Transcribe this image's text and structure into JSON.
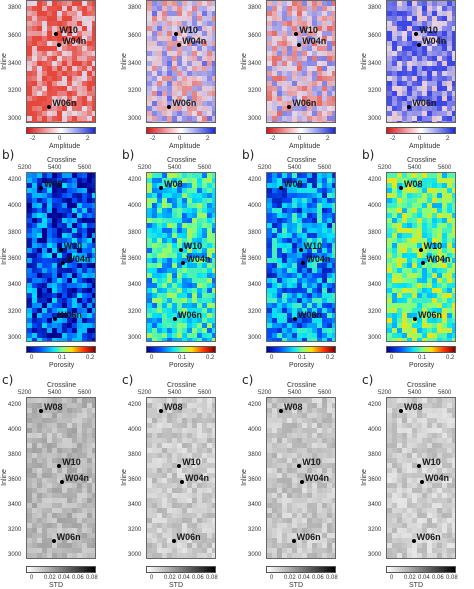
{
  "panels": {
    "row_a": {
      "inline_label": "Inline",
      "inline_ticks": [
        "3800",
        "3600",
        "3400",
        "3200",
        "3000"
      ],
      "colorbar_ticks": [
        "-2",
        "0",
        "2"
      ],
      "colorbar_title": "Amplitude",
      "wells": [
        "W10",
        "W04n",
        "W06n"
      ]
    },
    "row_b": {
      "panel_label": "b)",
      "crossline_title": "Crossline",
      "crossline_ticks": [
        "5200",
        "5400",
        "5600"
      ],
      "inline_label": "Inline",
      "inline_ticks": [
        "4200",
        "4000",
        "3800",
        "3600",
        "3400",
        "3200",
        "3000"
      ],
      "colorbar_ticks": [
        "0",
        "0.1",
        "0.2"
      ],
      "colorbar_title": "Porosity",
      "wells": [
        "W08",
        "W10",
        "W04n",
        "W06n"
      ]
    },
    "row_c": {
      "panel_label": "c)",
      "crossline_title": "Crossline",
      "crossline_ticks": [
        "5200",
        "5400",
        "5600"
      ],
      "inline_label": "Inline",
      "inline_ticks": [
        "4200",
        "4000",
        "3800",
        "3600",
        "3400",
        "3200",
        "3000"
      ],
      "colorbar_ticks": [
        "0",
        "0.02",
        "0.04",
        "0.06",
        "0.08"
      ],
      "colorbar_title": "STD",
      "wells": [
        "W08",
        "W10",
        "W04n",
        "W06n"
      ]
    }
  },
  "colors": {
    "amplitude_neg": "#d7191c",
    "amplitude_pos": "#1a2bd7",
    "porosity_low": "#00008f",
    "porosity_high": "#800000",
    "std_low": "#ffffff",
    "std_high": "#000000"
  }
}
